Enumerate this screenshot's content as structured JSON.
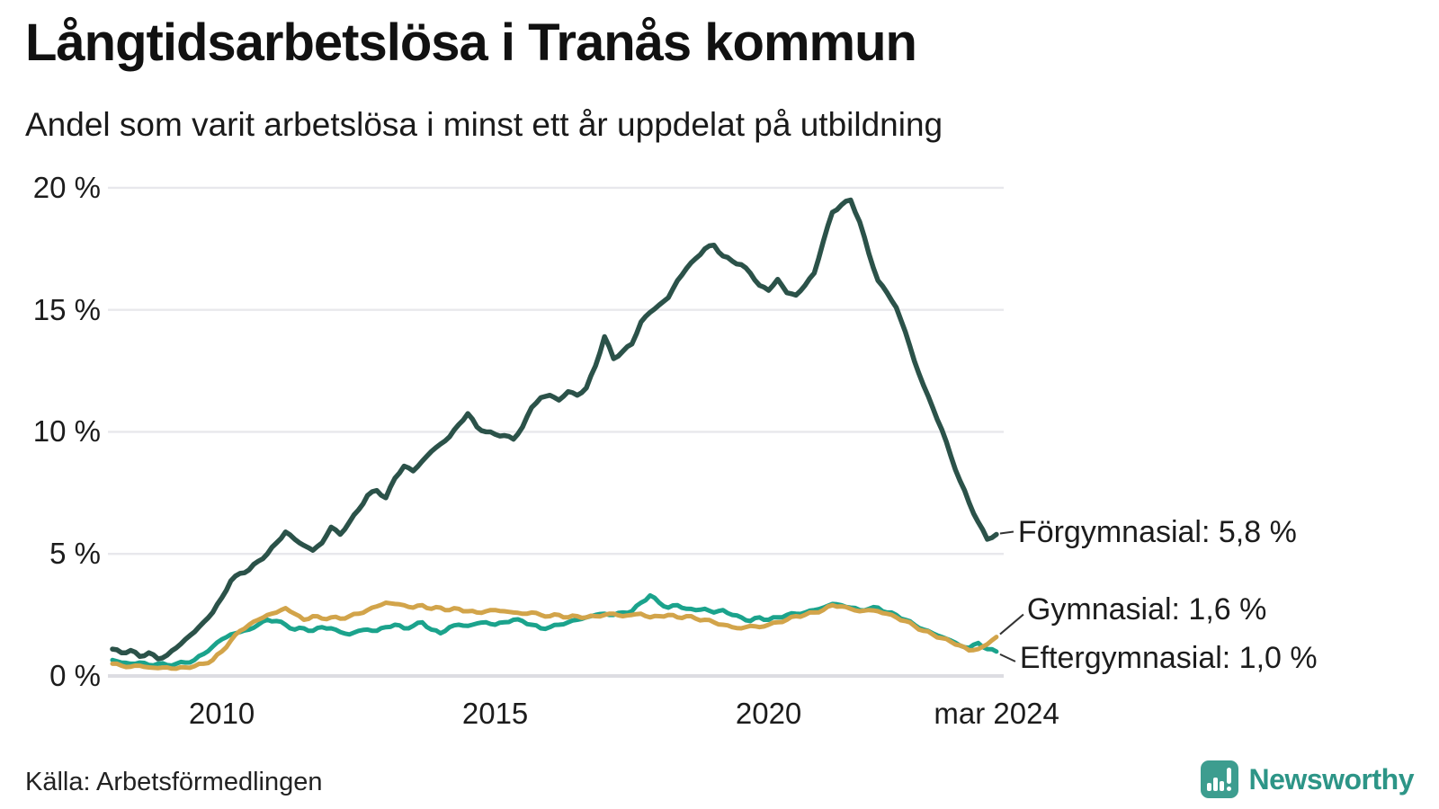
{
  "header": {
    "title": "Långtidsarbetslösa i Tranås kommun",
    "subtitle": "Andel som varit arbetslösa i minst ett år uppdelat på utbildning"
  },
  "footer": {
    "source": "Källa: Arbetsförmedlingen",
    "brand": "Newsworthy",
    "brand_color": "#2d9587",
    "brand_icon_color": "#3d9d8f"
  },
  "chart_data": {
    "type": "line",
    "title": "Långtidsarbetslösa i Tranås kommun",
    "subtitle": "Andel som varit arbetslösa i minst ett år uppdelat på utbildning",
    "unit": "%",
    "x_start": 2008.0,
    "x_step_years": 0.166667,
    "x_range": [
      2008.0,
      2024.25
    ],
    "ylim": [
      0,
      20
    ],
    "grid": true,
    "legend_position": "end-labels",
    "grid_color": "#e8e8ec",
    "baseline_color": "#dddde2",
    "y_ticks": [
      {
        "value": 0,
        "label": "0 %"
      },
      {
        "value": 5,
        "label": "5 %"
      },
      {
        "value": 10,
        "label": "10 %"
      },
      {
        "value": 15,
        "label": "15 %"
      },
      {
        "value": 20,
        "label": "20 %"
      }
    ],
    "x_ticks": [
      {
        "year": 2010.0,
        "label": "2010"
      },
      {
        "year": 2015.0,
        "label": "2015"
      },
      {
        "year": 2020.0,
        "label": "2020"
      },
      {
        "year": 2024.17,
        "label": "mar 2024"
      }
    ],
    "series": [
      {
        "name": "Eftergymnasial",
        "color": "#1ba38c",
        "end_value_label": "Eftergymnasial: 1,0 %",
        "last_value": 1.0,
        "values": [
          0.65,
          0.55,
          0.5,
          0.55,
          0.45,
          0.5,
          0.45,
          0.5,
          0.55,
          0.65,
          0.9,
          1.2,
          1.5,
          1.7,
          1.8,
          1.9,
          2.1,
          2.3,
          2.25,
          2.1,
          1.9,
          1.95,
          1.85,
          2.0,
          1.95,
          1.8,
          1.7,
          1.85,
          1.9,
          1.85,
          2.0,
          2.1,
          1.95,
          2.05,
          2.2,
          1.9,
          1.75,
          2.0,
          2.1,
          2.05,
          2.15,
          2.2,
          2.1,
          2.2,
          2.3,
          2.25,
          2.1,
          1.95,
          2.0,
          2.1,
          2.2,
          2.3,
          2.4,
          2.5,
          2.55,
          2.5,
          2.6,
          2.65,
          3.0,
          3.3,
          3.0,
          2.8,
          2.9,
          2.75,
          2.7,
          2.75,
          2.6,
          2.7,
          2.5,
          2.4,
          2.25,
          2.4,
          2.3,
          2.4,
          2.5,
          2.55,
          2.6,
          2.7,
          2.8,
          2.95,
          2.9,
          2.8,
          2.7,
          2.75,
          2.8,
          2.6,
          2.5,
          2.3,
          2.1,
          1.9,
          1.75,
          1.6,
          1.45,
          1.25,
          1.15,
          1.35,
          1.1,
          1.0
        ]
      },
      {
        "name": "Gymnasial",
        "color": "#d2a44a",
        "end_value_label": "Gymnasial: 1,6 %",
        "last_value": 1.6,
        "values": [
          0.5,
          0.42,
          0.38,
          0.42,
          0.35,
          0.32,
          0.35,
          0.3,
          0.35,
          0.4,
          0.5,
          0.65,
          1.0,
          1.45,
          1.85,
          2.1,
          2.3,
          2.5,
          2.6,
          2.78,
          2.55,
          2.3,
          2.45,
          2.35,
          2.4,
          2.35,
          2.45,
          2.55,
          2.7,
          2.85,
          3.0,
          2.95,
          2.9,
          2.8,
          2.9,
          2.75,
          2.8,
          2.7,
          2.75,
          2.65,
          2.6,
          2.65,
          2.7,
          2.65,
          2.6,
          2.55,
          2.6,
          2.5,
          2.45,
          2.5,
          2.4,
          2.45,
          2.4,
          2.45,
          2.5,
          2.55,
          2.45,
          2.5,
          2.55,
          2.4,
          2.45,
          2.5,
          2.4,
          2.45,
          2.35,
          2.3,
          2.2,
          2.1,
          2.0,
          1.95,
          2.05,
          2.0,
          2.1,
          2.2,
          2.3,
          2.45,
          2.5,
          2.6,
          2.7,
          2.9,
          2.85,
          2.75,
          2.65,
          2.7,
          2.65,
          2.55,
          2.4,
          2.25,
          2.05,
          1.85,
          1.7,
          1.55,
          1.4,
          1.25,
          1.05,
          1.1,
          1.3,
          1.6
        ]
      },
      {
        "name": "Förgymnasial",
        "color": "#2b5249",
        "end_value_label": "Förgymnasial: 5,8 %",
        "last_value": 5.8,
        "values": [
          1.1,
          0.95,
          1.05,
          0.8,
          0.95,
          0.7,
          0.85,
          1.15,
          1.5,
          1.8,
          2.2,
          2.6,
          3.2,
          3.9,
          4.2,
          4.35,
          4.7,
          5.0,
          5.45,
          5.9,
          5.6,
          5.35,
          5.15,
          5.45,
          6.1,
          5.8,
          6.3,
          6.8,
          7.4,
          7.6,
          7.3,
          8.1,
          8.6,
          8.4,
          8.8,
          9.2,
          9.5,
          9.8,
          10.3,
          10.75,
          10.2,
          10.0,
          9.9,
          9.85,
          9.7,
          10.2,
          11.0,
          11.4,
          11.5,
          11.3,
          11.65,
          11.5,
          11.8,
          12.7,
          13.9,
          13.0,
          13.3,
          13.6,
          14.5,
          14.9,
          15.2,
          15.5,
          16.2,
          16.7,
          17.1,
          17.5,
          17.65,
          17.2,
          17.0,
          16.85,
          16.5,
          16.0,
          15.8,
          16.25,
          15.7,
          15.6,
          16.0,
          16.5,
          17.8,
          19.0,
          19.3,
          19.5,
          18.6,
          17.3,
          16.2,
          15.7,
          15.1,
          14.1,
          12.9,
          11.9,
          11.0,
          10.1,
          9.0,
          8.0,
          7.1,
          6.3,
          5.6,
          5.8
        ]
      }
    ]
  }
}
